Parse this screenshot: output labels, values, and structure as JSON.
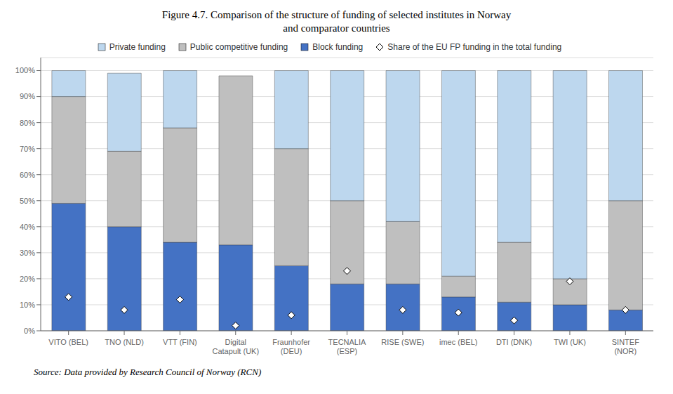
{
  "chart_data": {
    "type": "bar",
    "title": "Figure 4.7. Comparison of the structure of funding of selected institutes in Norway\nand comparator countries",
    "annotations": [
      "Source: Data provided by Research Council of Norway (RCN)"
    ],
    "categories": [
      "VITO (BEL)",
      "TNO (NLD)",
      "VTT (FIN)",
      "Digital\nCatapult (UK)",
      "Fraunhofer\n(DEU)",
      "TECNALIA\n(ESP)",
      "RISE (SWE)",
      "imec (BEL)",
      "DTI (DNK)",
      "TWI (UK)",
      "SINTEF\n(NOR)"
    ],
    "series": [
      {
        "name": "Block funding",
        "type": "bar",
        "color": "#4472C4",
        "values": [
          49,
          40,
          34,
          33,
          25,
          18,
          18,
          13,
          11,
          10,
          8
        ]
      },
      {
        "name": "Public competitive funding",
        "type": "bar",
        "color": "#BFBFBF",
        "values": [
          41,
          29,
          44,
          65,
          45,
          32,
          24,
          8,
          23,
          10,
          42
        ]
      },
      {
        "name": "Private funding",
        "type": "bar",
        "color": "#BDD7EE",
        "values": [
          10,
          30,
          22,
          0,
          30,
          50,
          58,
          79,
          66,
          80,
          50
        ]
      },
      {
        "name": "Share of the EU FP funding in the total funding",
        "type": "scatter",
        "marker": "diamond",
        "color": "#FFFFFF",
        "values": [
          13,
          8,
          12,
          2,
          6,
          23,
          8,
          7,
          4,
          19,
          8
        ]
      }
    ],
    "stacked": true,
    "ylim": [
      0,
      105
    ],
    "yticks": [
      {
        "value": 0,
        "label": "0%"
      },
      {
        "value": 10,
        "label": "10%"
      },
      {
        "value": 20,
        "label": "20%"
      },
      {
        "value": 30,
        "label": "30%"
      },
      {
        "value": 40,
        "label": "40%"
      },
      {
        "value": 50,
        "label": "50%"
      },
      {
        "value": 60,
        "label": "60%"
      },
      {
        "value": 70,
        "label": "70%"
      },
      {
        "value": 80,
        "label": "80%"
      },
      {
        "value": 90,
        "label": "90%"
      },
      {
        "value": 100,
        "label": "100%"
      }
    ],
    "grid": true,
    "legend": "upper center"
  }
}
